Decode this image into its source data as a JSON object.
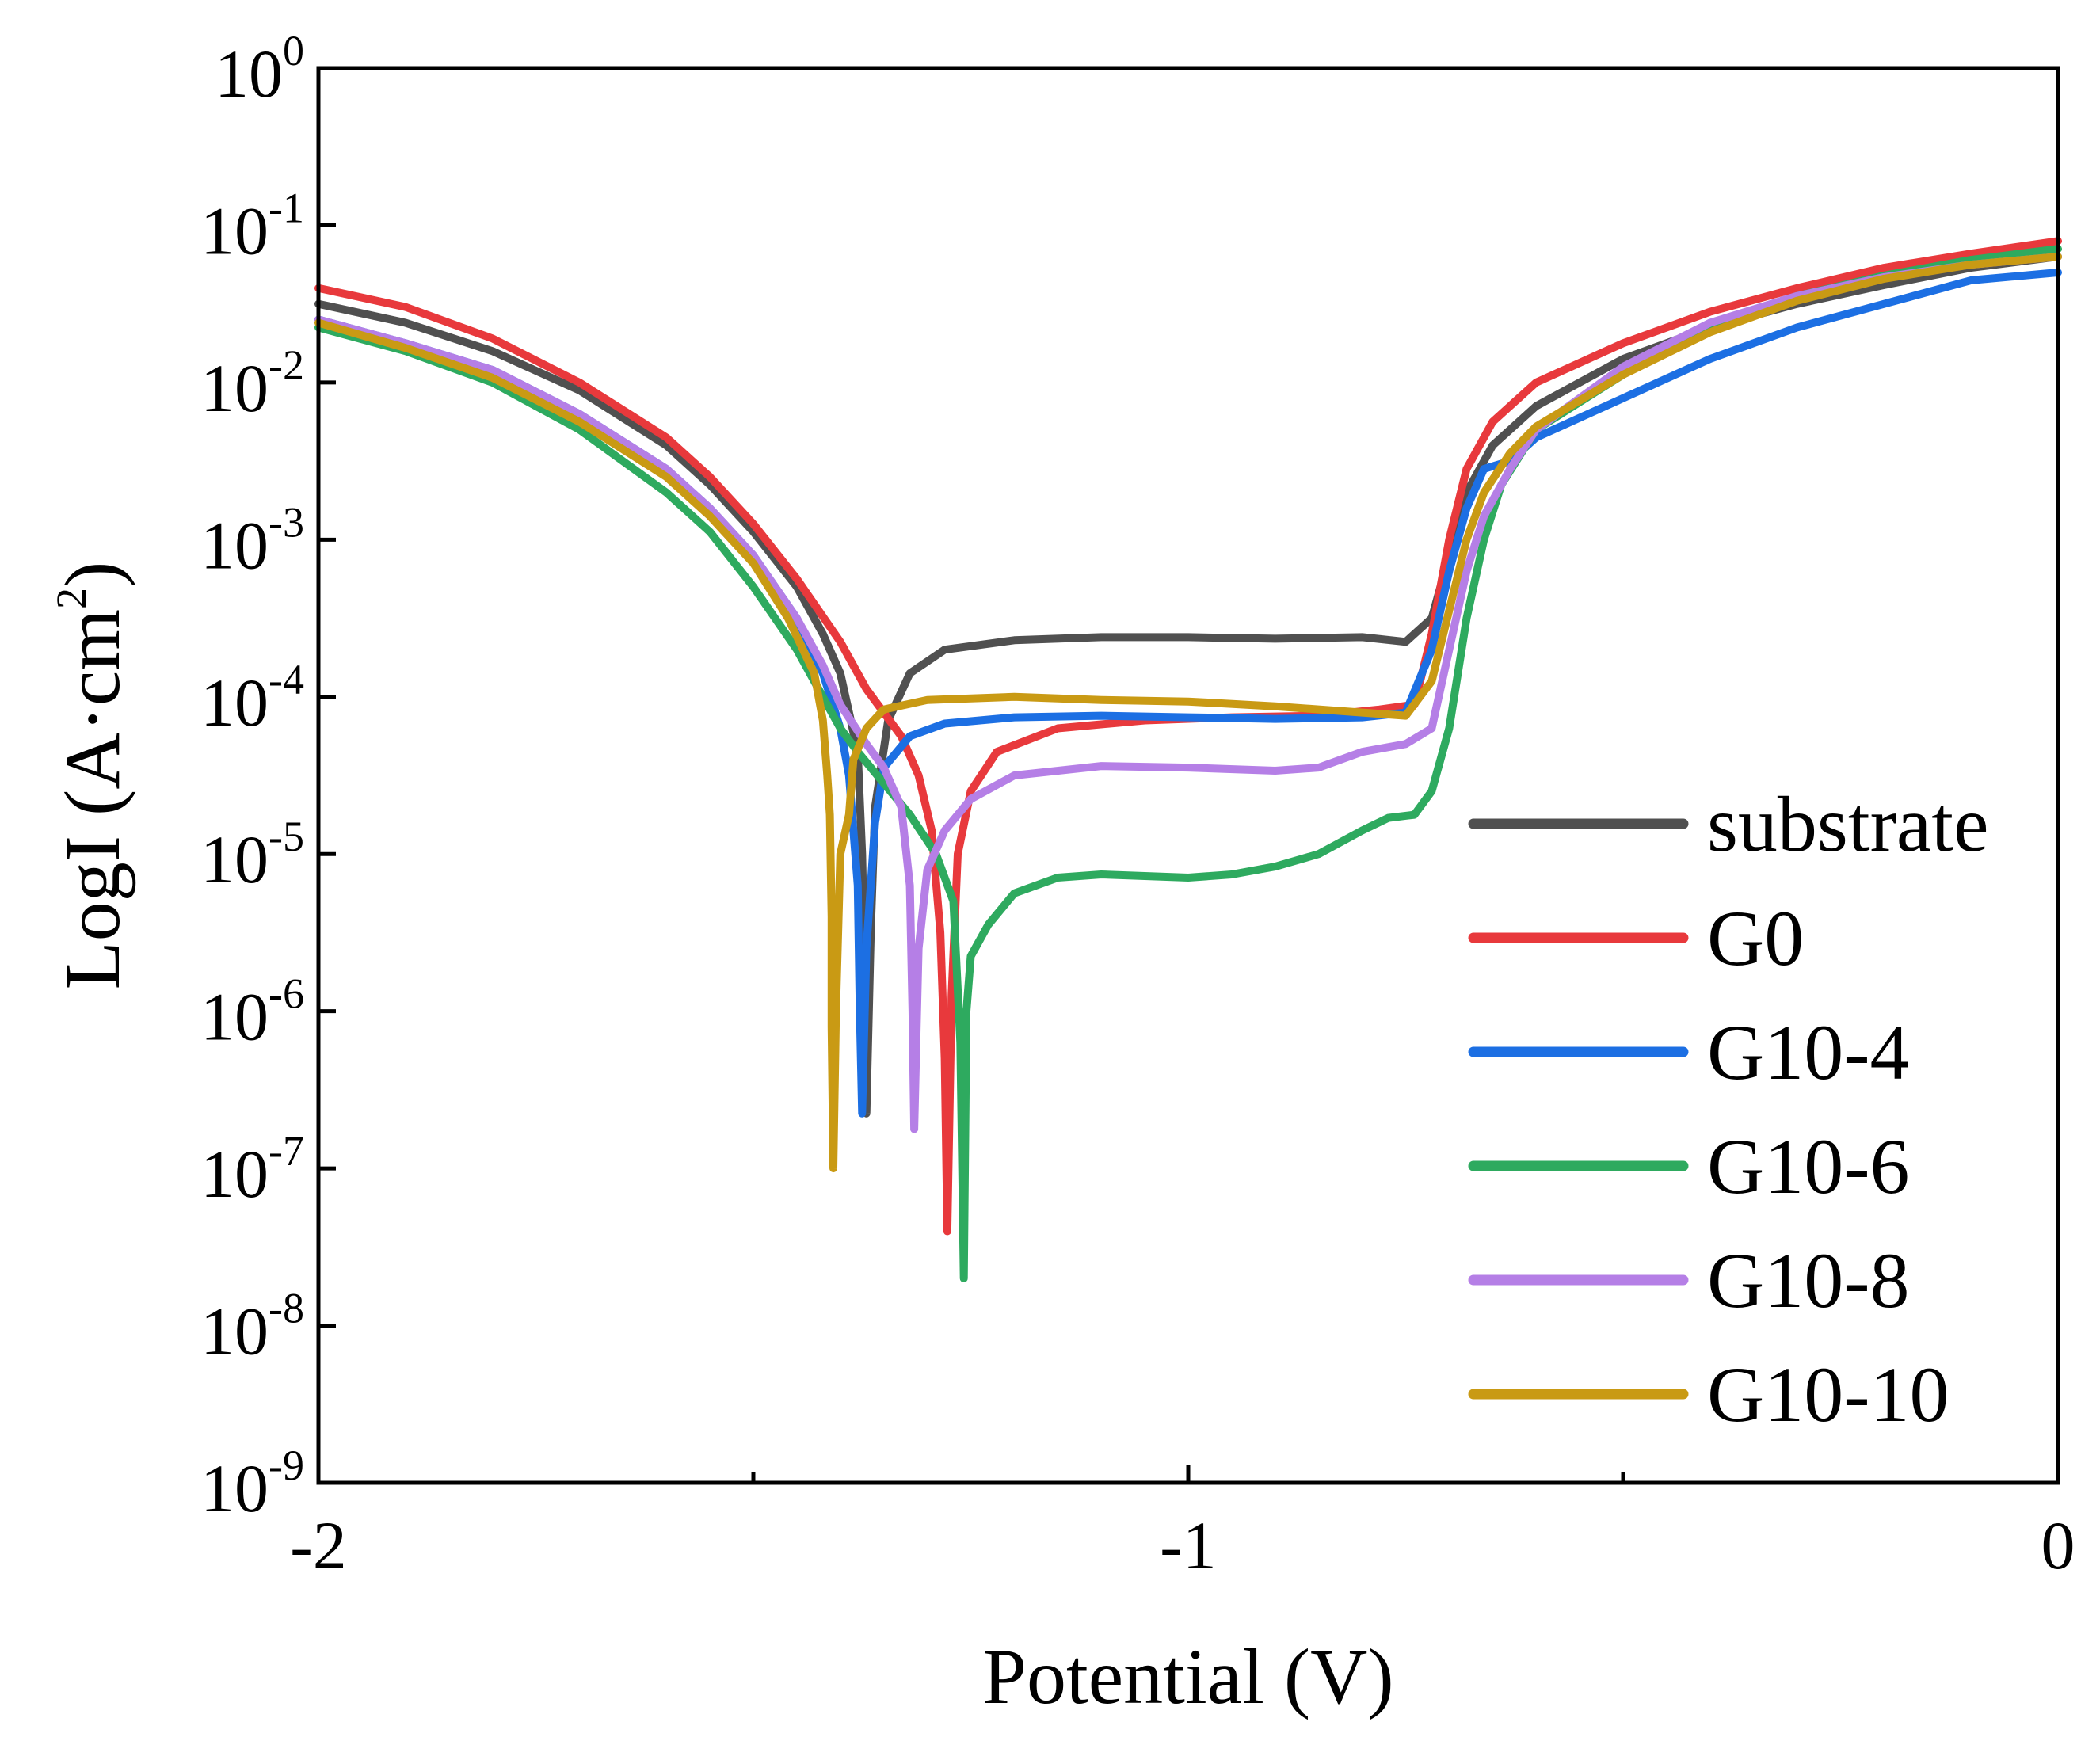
{
  "chart_data": {
    "type": "line",
    "title": "",
    "xlabel": "Potential (V)",
    "ylabel": {
      "base": "LogI (A·cm",
      "sup": "2",
      "tail": ")"
    },
    "xlim": [
      -2,
      0
    ],
    "ylim_log10": [
      -9,
      0
    ],
    "x_ticks": [
      {
        "value": -2,
        "label": "-2"
      },
      {
        "value": -1,
        "label": "-1"
      },
      {
        "value": 0,
        "label": "0"
      }
    ],
    "x_minor_ticks": [
      -1.5,
      -0.5
    ],
    "y_ticks": [
      {
        "exp": 0,
        "base": "10",
        "sup": "0"
      },
      {
        "exp": -1,
        "base": "10",
        "sup": "-1"
      },
      {
        "exp": -2,
        "base": "10",
        "sup": "-2"
      },
      {
        "exp": -3,
        "base": "10",
        "sup": "-3"
      },
      {
        "exp": -4,
        "base": "10",
        "sup": "-4"
      },
      {
        "exp": -5,
        "base": "10",
        "sup": "-5"
      },
      {
        "exp": -6,
        "base": "10",
        "sup": "-6"
      },
      {
        "exp": -7,
        "base": "10",
        "sup": "-7"
      },
      {
        "exp": -8,
        "base": "10",
        "sup": "-8"
      },
      {
        "exp": -9,
        "base": "10",
        "sup": "-9"
      }
    ],
    "legend_position": "bottom-right",
    "series": [
      {
        "name": "substrate",
        "color": "#505050",
        "points": [
          [
            -2.0,
            -1.5
          ],
          [
            -1.9,
            -1.62
          ],
          [
            -1.8,
            -1.8
          ],
          [
            -1.7,
            -2.05
          ],
          [
            -1.6,
            -2.4
          ],
          [
            -1.55,
            -2.65
          ],
          [
            -1.5,
            -2.95
          ],
          [
            -1.45,
            -3.3
          ],
          [
            -1.42,
            -3.6
          ],
          [
            -1.4,
            -3.85
          ],
          [
            -1.38,
            -4.35
          ],
          [
            -1.375,
            -5.0
          ],
          [
            -1.372,
            -5.7
          ],
          [
            -1.37,
            -6.65
          ],
          [
            -1.365,
            -5.5
          ],
          [
            -1.36,
            -4.7
          ],
          [
            -1.345,
            -4.15
          ],
          [
            -1.32,
            -3.85
          ],
          [
            -1.28,
            -3.7
          ],
          [
            -1.2,
            -3.64
          ],
          [
            -1.1,
            -3.62
          ],
          [
            -1.0,
            -3.62
          ],
          [
            -0.9,
            -3.63
          ],
          [
            -0.8,
            -3.62
          ],
          [
            -0.75,
            -3.65
          ],
          [
            -0.72,
            -3.5
          ],
          [
            -0.7,
            -3.1
          ],
          [
            -0.68,
            -2.7
          ],
          [
            -0.65,
            -2.4
          ],
          [
            -0.6,
            -2.15
          ],
          [
            -0.5,
            -1.85
          ],
          [
            -0.4,
            -1.65
          ],
          [
            -0.3,
            -1.5
          ],
          [
            -0.2,
            -1.38
          ],
          [
            -0.1,
            -1.27
          ],
          [
            0.0,
            -1.2
          ]
        ]
      },
      {
        "name": "G0",
        "color": "#e8393c",
        "points": [
          [
            -2.0,
            -1.4
          ],
          [
            -1.9,
            -1.52
          ],
          [
            -1.8,
            -1.72
          ],
          [
            -1.7,
            -2.0
          ],
          [
            -1.6,
            -2.35
          ],
          [
            -1.55,
            -2.6
          ],
          [
            -1.5,
            -2.9
          ],
          [
            -1.45,
            -3.25
          ],
          [
            -1.4,
            -3.65
          ],
          [
            -1.37,
            -3.95
          ],
          [
            -1.35,
            -4.1
          ],
          [
            -1.33,
            -4.25
          ],
          [
            -1.31,
            -4.5
          ],
          [
            -1.295,
            -4.85
          ],
          [
            -1.285,
            -5.5
          ],
          [
            -1.28,
            -6.3
          ],
          [
            -1.277,
            -7.4
          ],
          [
            -1.272,
            -5.9
          ],
          [
            -1.265,
            -5.0
          ],
          [
            -1.25,
            -4.6
          ],
          [
            -1.22,
            -4.35
          ],
          [
            -1.15,
            -4.2
          ],
          [
            -1.05,
            -4.15
          ],
          [
            -0.95,
            -4.13
          ],
          [
            -0.85,
            -4.12
          ],
          [
            -0.78,
            -4.08
          ],
          [
            -0.74,
            -4.05
          ],
          [
            -0.72,
            -3.6
          ],
          [
            -0.7,
            -3.0
          ],
          [
            -0.68,
            -2.55
          ],
          [
            -0.65,
            -2.25
          ],
          [
            -0.6,
            -2.0
          ],
          [
            -0.5,
            -1.75
          ],
          [
            -0.4,
            -1.55
          ],
          [
            -0.3,
            -1.4
          ],
          [
            -0.2,
            -1.27
          ],
          [
            -0.1,
            -1.18
          ],
          [
            0.0,
            -1.1
          ]
        ]
      },
      {
        "name": "G10-4",
        "color": "#1c6fe3",
        "points": [
          [
            -2.0,
            -1.6
          ],
          [
            -1.9,
            -1.75
          ],
          [
            -1.8,
            -1.92
          ],
          [
            -1.7,
            -2.2
          ],
          [
            -1.6,
            -2.55
          ],
          [
            -1.55,
            -2.8
          ],
          [
            -1.5,
            -3.1
          ],
          [
            -1.45,
            -3.5
          ],
          [
            -1.42,
            -3.85
          ],
          [
            -1.4,
            -4.2
          ],
          [
            -1.39,
            -4.5
          ],
          [
            -1.38,
            -5.2
          ],
          [
            -1.378,
            -5.9
          ],
          [
            -1.375,
            -6.65
          ],
          [
            -1.37,
            -5.6
          ],
          [
            -1.36,
            -4.8
          ],
          [
            -1.35,
            -4.45
          ],
          [
            -1.32,
            -4.25
          ],
          [
            -1.28,
            -4.17
          ],
          [
            -1.2,
            -4.13
          ],
          [
            -1.1,
            -4.12
          ],
          [
            -1.0,
            -4.13
          ],
          [
            -0.9,
            -4.14
          ],
          [
            -0.8,
            -4.13
          ],
          [
            -0.75,
            -4.1
          ],
          [
            -0.72,
            -3.7
          ],
          [
            -0.7,
            -3.2
          ],
          [
            -0.68,
            -2.8
          ],
          [
            -0.66,
            -2.55
          ],
          [
            -0.63,
            -2.5
          ],
          [
            -0.6,
            -2.35
          ],
          [
            -0.5,
            -2.1
          ],
          [
            -0.4,
            -1.85
          ],
          [
            -0.3,
            -1.65
          ],
          [
            -0.2,
            -1.5
          ],
          [
            -0.1,
            -1.35
          ],
          [
            0.0,
            -1.3
          ]
        ]
      },
      {
        "name": "G10-6",
        "color": "#2eaa5f",
        "points": [
          [
            -2.0,
            -1.65
          ],
          [
            -1.9,
            -1.8
          ],
          [
            -1.8,
            -2.0
          ],
          [
            -1.7,
            -2.3
          ],
          [
            -1.6,
            -2.7
          ],
          [
            -1.55,
            -2.95
          ],
          [
            -1.5,
            -3.3
          ],
          [
            -1.45,
            -3.7
          ],
          [
            -1.42,
            -4.0
          ],
          [
            -1.4,
            -4.2
          ],
          [
            -1.38,
            -4.35
          ],
          [
            -1.35,
            -4.55
          ],
          [
            -1.32,
            -4.75
          ],
          [
            -1.29,
            -5.0
          ],
          [
            -1.27,
            -5.3
          ],
          [
            -1.262,
            -6.2
          ],
          [
            -1.258,
            -7.7
          ],
          [
            -1.255,
            -6.0
          ],
          [
            -1.25,
            -5.65
          ],
          [
            -1.23,
            -5.45
          ],
          [
            -1.2,
            -5.25
          ],
          [
            -1.15,
            -5.15
          ],
          [
            -1.1,
            -5.13
          ],
          [
            -1.0,
            -5.15
          ],
          [
            -0.95,
            -5.13
          ],
          [
            -0.9,
            -5.08
          ],
          [
            -0.85,
            -5.0
          ],
          [
            -0.8,
            -4.85
          ],
          [
            -0.77,
            -4.77
          ],
          [
            -0.74,
            -4.75
          ],
          [
            -0.72,
            -4.6
          ],
          [
            -0.7,
            -4.2
          ],
          [
            -0.68,
            -3.5
          ],
          [
            -0.66,
            -3.0
          ],
          [
            -0.64,
            -2.65
          ],
          [
            -0.6,
            -2.3
          ],
          [
            -0.5,
            -1.95
          ],
          [
            -0.4,
            -1.65
          ],
          [
            -0.3,
            -1.45
          ],
          [
            -0.2,
            -1.32
          ],
          [
            -0.1,
            -1.22
          ],
          [
            0.0,
            -1.15
          ]
        ]
      },
      {
        "name": "G10-8",
        "color": "#b57fe6",
        "points": [
          [
            -2.0,
            -1.6
          ],
          [
            -1.9,
            -1.75
          ],
          [
            -1.8,
            -1.92
          ],
          [
            -1.7,
            -2.2
          ],
          [
            -1.6,
            -2.55
          ],
          [
            -1.55,
            -2.8
          ],
          [
            -1.5,
            -3.1
          ],
          [
            -1.45,
            -3.5
          ],
          [
            -1.42,
            -3.8
          ],
          [
            -1.4,
            -4.05
          ],
          [
            -1.37,
            -4.3
          ],
          [
            -1.35,
            -4.45
          ],
          [
            -1.33,
            -4.7
          ],
          [
            -1.32,
            -5.2
          ],
          [
            -1.317,
            -6.0
          ],
          [
            -1.315,
            -6.75
          ],
          [
            -1.31,
            -5.6
          ],
          [
            -1.3,
            -5.1
          ],
          [
            -1.28,
            -4.85
          ],
          [
            -1.25,
            -4.65
          ],
          [
            -1.2,
            -4.5
          ],
          [
            -1.1,
            -4.44
          ],
          [
            -1.0,
            -4.45
          ],
          [
            -0.9,
            -4.47
          ],
          [
            -0.85,
            -4.45
          ],
          [
            -0.8,
            -4.35
          ],
          [
            -0.75,
            -4.3
          ],
          [
            -0.72,
            -4.2
          ],
          [
            -0.7,
            -3.7
          ],
          [
            -0.68,
            -3.2
          ],
          [
            -0.66,
            -2.85
          ],
          [
            -0.63,
            -2.55
          ],
          [
            -0.6,
            -2.3
          ],
          [
            -0.5,
            -1.9
          ],
          [
            -0.4,
            -1.62
          ],
          [
            -0.3,
            -1.45
          ],
          [
            -0.2,
            -1.33
          ],
          [
            -0.1,
            -1.25
          ],
          [
            0.0,
            -1.2
          ]
        ]
      },
      {
        "name": "G10-10",
        "color": "#c99a14",
        "points": [
          [
            -2.0,
            -1.62
          ],
          [
            -1.9,
            -1.78
          ],
          [
            -1.8,
            -1.97
          ],
          [
            -1.7,
            -2.25
          ],
          [
            -1.6,
            -2.6
          ],
          [
            -1.55,
            -2.85
          ],
          [
            -1.5,
            -3.15
          ],
          [
            -1.46,
            -3.5
          ],
          [
            -1.43,
            -3.85
          ],
          [
            -1.42,
            -4.15
          ],
          [
            -1.415,
            -4.5
          ],
          [
            -1.412,
            -4.75
          ],
          [
            -1.41,
            -5.4
          ],
          [
            -1.41,
            -6.1
          ],
          [
            -1.408,
            -7.0
          ],
          [
            -1.405,
            -6.0
          ],
          [
            -1.4,
            -5.0
          ],
          [
            -1.39,
            -4.75
          ],
          [
            -1.385,
            -4.4
          ],
          [
            -1.37,
            -4.2
          ],
          [
            -1.35,
            -4.08
          ],
          [
            -1.3,
            -4.02
          ],
          [
            -1.2,
            -4.0
          ],
          [
            -1.1,
            -4.02
          ],
          [
            -1.0,
            -4.03
          ],
          [
            -0.9,
            -4.06
          ],
          [
            -0.8,
            -4.1
          ],
          [
            -0.75,
            -4.12
          ],
          [
            -0.72,
            -3.9
          ],
          [
            -0.7,
            -3.45
          ],
          [
            -0.68,
            -3.0
          ],
          [
            -0.66,
            -2.7
          ],
          [
            -0.63,
            -2.45
          ],
          [
            -0.6,
            -2.28
          ],
          [
            -0.5,
            -1.95
          ],
          [
            -0.4,
            -1.68
          ],
          [
            -0.3,
            -1.48
          ],
          [
            -0.2,
            -1.34
          ],
          [
            -0.1,
            -1.25
          ],
          [
            0.0,
            -1.2
          ]
        ]
      }
    ]
  }
}
